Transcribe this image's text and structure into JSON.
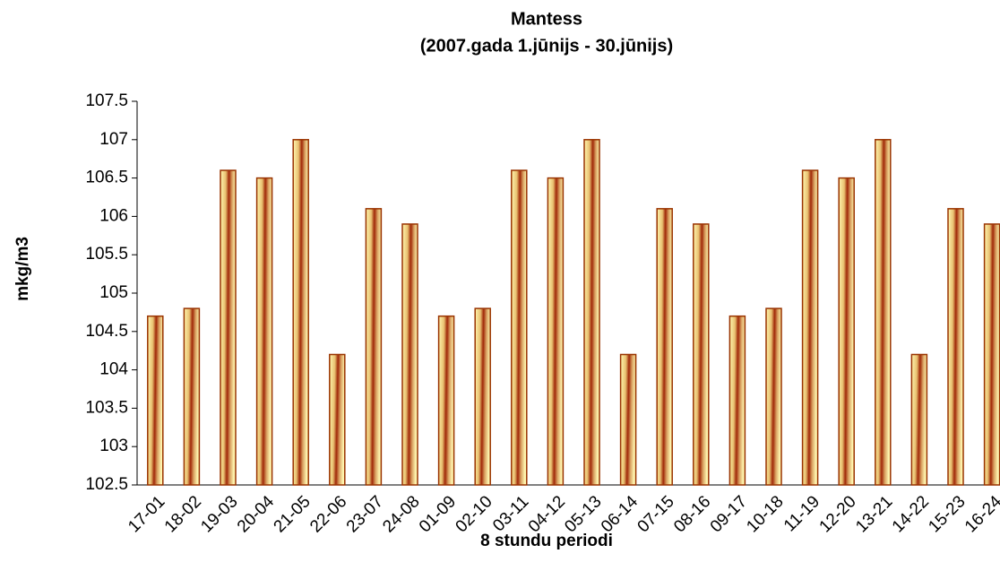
{
  "chart_data": {
    "type": "bar",
    "title": "Mantess",
    "subtitle": "(2007.gada 1.jūnijs - 30.jūnijs)",
    "x_label": "8 stundu periodi",
    "y_label": "mkg/m3",
    "categories": [
      "17-01",
      "18-02",
      "19-03",
      "20-04",
      "21-05",
      "22-06",
      "23-07",
      "24-08",
      "01-09",
      "02-10",
      "03-11",
      "04-12",
      "05-13",
      "06-14",
      "07-15",
      "08-16",
      "09-17",
      "10-18",
      "11-19",
      "12-20",
      "13-21",
      "14-22",
      "15-23",
      "16-24"
    ],
    "values": [
      104.7,
      104.8,
      106.6,
      106.5,
      107,
      104.2,
      106.1,
      105.9,
      104.7,
      104.8,
      106.6,
      106.5,
      107,
      104.2,
      106.1,
      105.9,
      104.7,
      104.8,
      106.6,
      106.5,
      107,
      104.2,
      106.1,
      105.9
    ],
    "color": "#993300",
    "ylim": [
      102.5,
      107.5
    ],
    "yticks": [
      102.5,
      103,
      103.5,
      104,
      104.5,
      105,
      105.5,
      106,
      106.5,
      107,
      107.5
    ],
    "grid": false
  }
}
